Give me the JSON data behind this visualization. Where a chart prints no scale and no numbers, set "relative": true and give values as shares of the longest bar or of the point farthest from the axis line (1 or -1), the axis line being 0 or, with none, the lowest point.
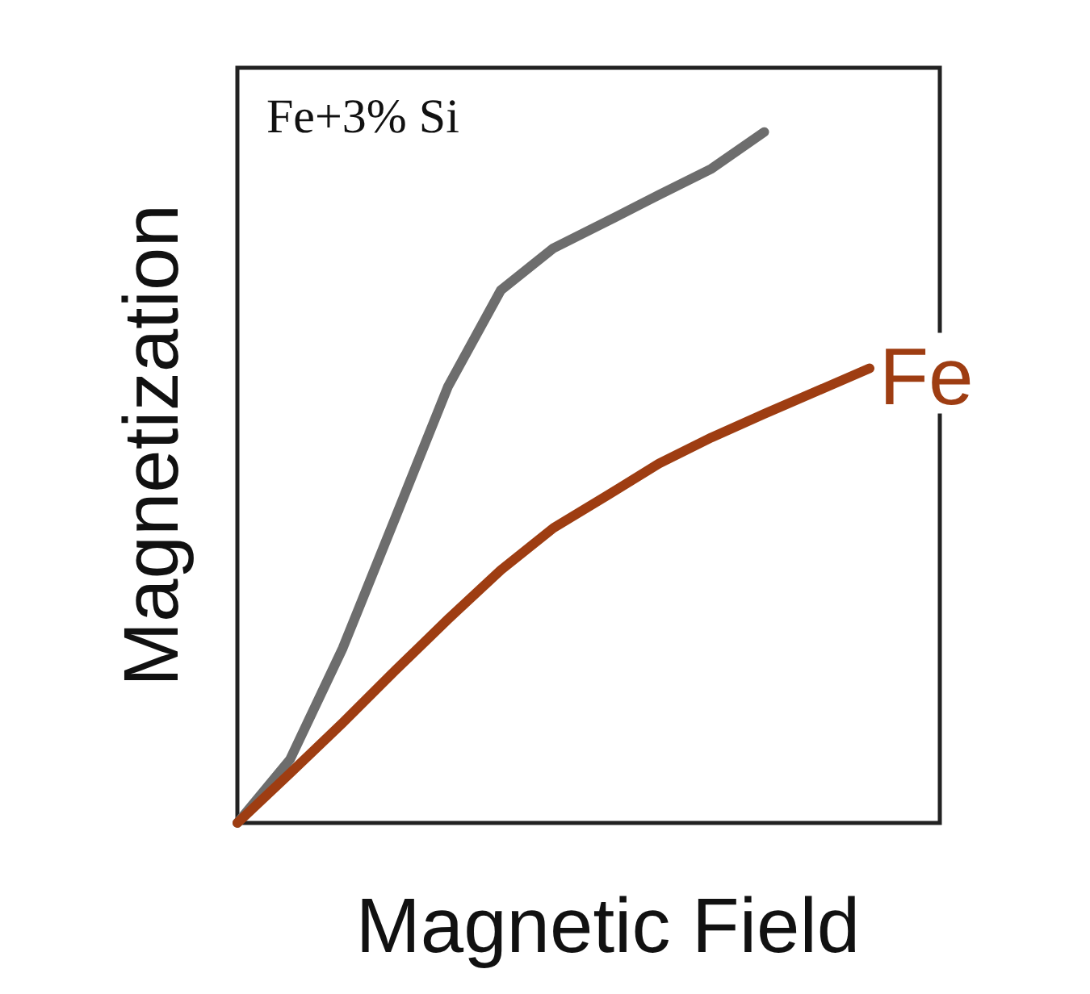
{
  "chart_data": {
    "type": "line",
    "relative": true,
    "xlabel": "Magnetic Field",
    "ylabel": "Magnetization",
    "categories": [
      null,
      null,
      null,
      null,
      null,
      null,
      null,
      null,
      null,
      null,
      null,
      null,
      null
    ],
    "marker": "none",
    "line_style": "solid",
    "series": [
      {
        "name": "Fe+3% Si",
        "color": "#6d6d6d",
        "values": [
          0,
          0.092,
          0.253,
          0.442,
          0.632,
          0.771,
          0.832,
          0.87,
          0.909,
          0.947,
          1,
          null,
          null
        ]
      },
      {
        "name": "Fe",
        "color": "#9e3d12",
        "values": [
          0,
          0.072,
          0.145,
          0.221,
          0.295,
          0.366,
          0.427,
          0.473,
          0.52,
          0.558,
          0.592,
          0.625,
          0.658
        ]
      }
    ]
  }
}
